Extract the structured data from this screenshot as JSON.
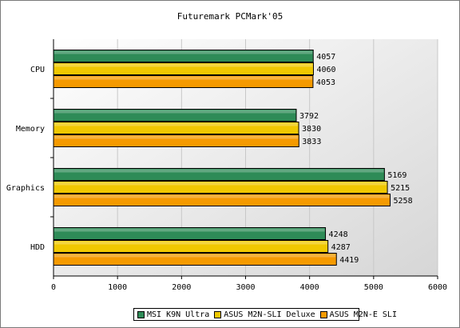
{
  "chart_data": {
    "type": "bar",
    "orientation": "horizontal",
    "title": "Futuremark PCMark'05",
    "categories": [
      "CPU",
      "Memory",
      "Graphics",
      "HDD"
    ],
    "series": [
      {
        "name": "MSI K9N Ultra",
        "color": "#2e8b57",
        "values": [
          4057,
          3792,
          5169,
          4248
        ]
      },
      {
        "name": "ASUS M2N-SLI Deluxe",
        "color": "#f0c800",
        "values": [
          4060,
          3830,
          5215,
          4287
        ]
      },
      {
        "name": "ASUS M2N-E SLI",
        "color": "#f59a00",
        "values": [
          4053,
          3833,
          5258,
          4419
        ]
      }
    ],
    "xlim": [
      0,
      6000
    ],
    "xticks": [
      0,
      1000,
      2000,
      3000,
      4000,
      5000,
      6000
    ],
    "grid": true,
    "legend_position": "bottom"
  }
}
